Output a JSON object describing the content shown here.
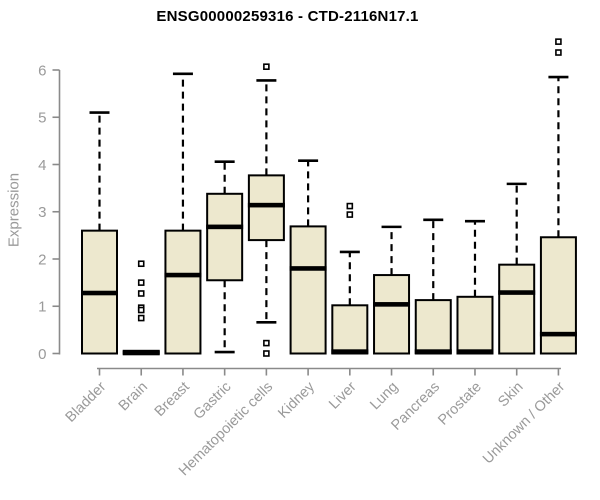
{
  "chart_data": {
    "type": "boxplot",
    "title": "ENSG00000259316 - CTD-2116N17.1",
    "ylabel": "Expression",
    "xlabel": "",
    "ylim": [
      0,
      6.7
    ],
    "yticks": [
      0,
      1,
      2,
      3,
      4,
      5,
      6
    ],
    "grid": false,
    "legend": false,
    "categories": [
      "Bladder",
      "Brain",
      "Breast",
      "Gastric",
      "Hematopoietic cells",
      "Kidney",
      "Liver",
      "Lung",
      "Pancreas",
      "Prostate",
      "Skin",
      "Unknown / Other"
    ],
    "series": [
      {
        "category": "Bladder",
        "whisker_low": 0,
        "q1": 0,
        "median": 1.28,
        "q3": 2.6,
        "whisker_high": 5.1,
        "outliers": []
      },
      {
        "category": "Brain",
        "whisker_low": 0,
        "q1": 0,
        "median": 0.02,
        "q3": 0.04,
        "whisker_high": 0.04,
        "outliers": [
          1.9,
          1.5,
          1.27,
          0.97,
          0.92,
          0.75
        ]
      },
      {
        "category": "Breast",
        "whisker_low": 0,
        "q1": 0,
        "median": 1.66,
        "q3": 2.6,
        "whisker_high": 5.92,
        "outliers": []
      },
      {
        "category": "Gastric",
        "whisker_low": 0.03,
        "q1": 1.55,
        "median": 2.68,
        "q3": 3.38,
        "whisker_high": 4.06,
        "outliers": []
      },
      {
        "category": "Hematopoietic cells",
        "whisker_low": 0.66,
        "q1": 2.4,
        "median": 3.14,
        "q3": 3.77,
        "whisker_high": 5.78,
        "outliers": [
          6.07,
          0.22,
          0.0
        ]
      },
      {
        "category": "Kidney",
        "whisker_low": 0,
        "q1": 0,
        "median": 1.8,
        "q3": 2.69,
        "whisker_high": 4.08,
        "outliers": []
      },
      {
        "category": "Liver",
        "whisker_low": 0,
        "q1": 0,
        "median": 0.04,
        "q3": 1.02,
        "whisker_high": 2.15,
        "outliers": [
          3.12,
          2.94
        ]
      },
      {
        "category": "Lung",
        "whisker_low": 0,
        "q1": 0,
        "median": 1.04,
        "q3": 1.66,
        "whisker_high": 2.68,
        "outliers": []
      },
      {
        "category": "Pancreas",
        "whisker_low": 0,
        "q1": 0,
        "median": 0.04,
        "q3": 1.13,
        "whisker_high": 2.83,
        "outliers": []
      },
      {
        "category": "Prostate",
        "whisker_low": 0,
        "q1": 0,
        "median": 0.04,
        "q3": 1.2,
        "whisker_high": 2.8,
        "outliers": []
      },
      {
        "category": "Skin",
        "whisker_low": 0,
        "q1": 0,
        "median": 1.29,
        "q3": 1.88,
        "whisker_high": 3.59,
        "outliers": []
      },
      {
        "category": "Unknown / Other",
        "whisker_low": 0,
        "q1": 0,
        "median": 0.41,
        "q3": 2.46,
        "whisker_high": 5.85,
        "outliers": [
          6.6,
          6.37
        ]
      }
    ],
    "colors": {
      "box_fill": "#EDE8CE",
      "box_stroke": "#000000",
      "median": "#000000",
      "whisker": "#000000",
      "outlier": "#000000",
      "axis": "#8a8a8a",
      "tick_label": "#9a9a9a",
      "title": "#000000",
      "background": "#ffffff"
    }
  }
}
